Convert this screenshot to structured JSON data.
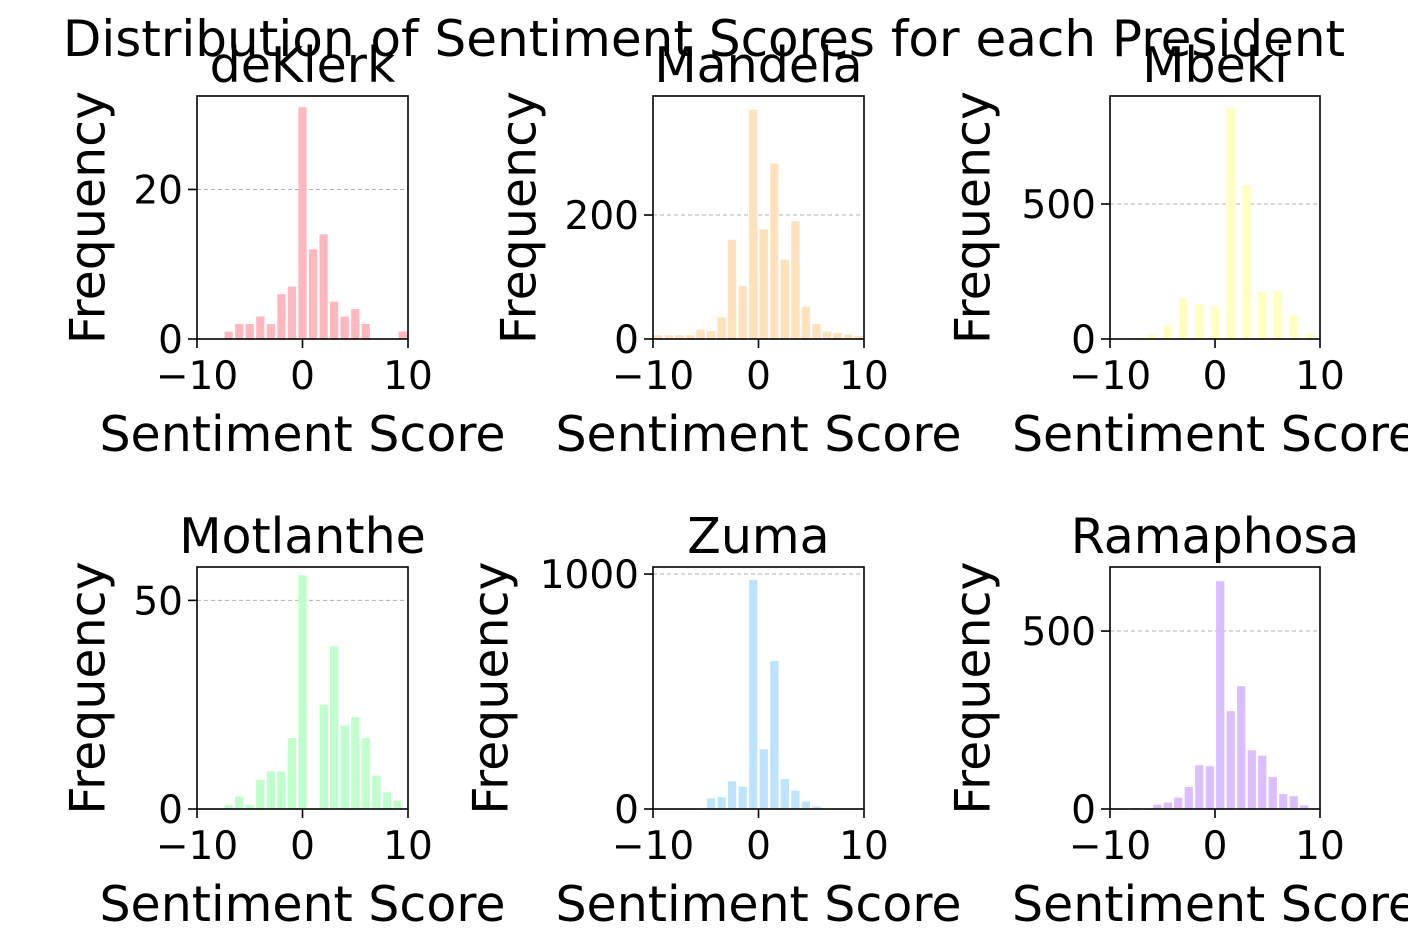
{
  "figure_title": "Distribution of Sentiment Scores for each President",
  "chart_data": [
    {
      "type": "bar",
      "title": "deKlerk",
      "xlabel": "Sentiment Score",
      "ylabel": "Frequency",
      "color": "#ffb3ba",
      "xlim": [
        -10,
        10
      ],
      "ylim": [
        0,
        32.5
      ],
      "xticks": [
        -10,
        0,
        10
      ],
      "yticks": [
        0,
        20
      ],
      "grid_y": [
        20
      ],
      "x": [
        -7,
        -6,
        -5,
        -4,
        -3,
        -2,
        -1,
        0,
        1,
        2,
        3,
        4,
        5,
        6,
        9.5
      ],
      "values": [
        1,
        2,
        2,
        3,
        2,
        6,
        7,
        31,
        12,
        14,
        5,
        3,
        4,
        2,
        1
      ]
    },
    {
      "type": "bar",
      "title": "Mandela",
      "xlabel": "Sentiment Score",
      "ylabel": "Frequency",
      "color": "#ffdfba",
      "xlim": [
        -10,
        10
      ],
      "ylim": [
        0,
        392
      ],
      "xticks": [
        -10,
        0,
        10
      ],
      "yticks": [
        0,
        200
      ],
      "grid_y": [
        200
      ],
      "x": [
        -9.5,
        -8.5,
        -7.5,
        -6.5,
        -5.5,
        -4.5,
        -3.5,
        -2.5,
        -1.5,
        -0.5,
        0.5,
        1.5,
        2.5,
        3.5,
        4.5,
        5.5,
        6.5,
        7.5,
        8.5,
        9.5
      ],
      "values": [
        6,
        6,
        6,
        6,
        15,
        13,
        35,
        160,
        85,
        370,
        177,
        283,
        128,
        190,
        52,
        24,
        12,
        10,
        7,
        5
      ]
    },
    {
      "type": "bar",
      "title": "Mbeki",
      "xlabel": "Sentiment Score",
      "ylabel": "Frequency",
      "color": "#ffffba",
      "xlim": [
        -10,
        10
      ],
      "ylim": [
        0,
        900
      ],
      "xticks": [
        -10,
        0,
        10
      ],
      "yticks": [
        0,
        500
      ],
      "grid_y": [
        500
      ],
      "x": [
        -9,
        -7.5,
        -6,
        -4.5,
        -3,
        -1.5,
        0,
        1.5,
        3,
        4.5,
        6,
        7.5,
        9
      ],
      "values": [
        0,
        5,
        15,
        50,
        150,
        130,
        120,
        855,
        570,
        175,
        178,
        90,
        20
      ]
    },
    {
      "type": "bar",
      "title": "Motlanthe",
      "xlabel": "Sentiment Score",
      "ylabel": "Frequency",
      "color": "#baffc9",
      "xlim": [
        -10,
        10
      ],
      "ylim": [
        0,
        58
      ],
      "xticks": [
        -10,
        0,
        10
      ],
      "yticks": [
        0,
        50
      ],
      "grid_y": [
        50
      ],
      "x": [
        -7,
        -6,
        -5,
        -4,
        -3,
        -2,
        -1,
        0,
        1,
        2,
        3,
        4,
        5,
        6,
        7,
        8,
        9
      ],
      "values": [
        1,
        3,
        1,
        7,
        9,
        9,
        17,
        56,
        0,
        25,
        39,
        20,
        22,
        17,
        8,
        4,
        2
      ]
    },
    {
      "type": "bar",
      "title": "Zuma",
      "xlabel": "Sentiment Score",
      "ylabel": "Frequency",
      "color": "#bae1ff",
      "xlim": [
        -10,
        10
      ],
      "ylim": [
        0,
        1030
      ],
      "xticks": [
        -10,
        0,
        10
      ],
      "yticks": [
        0,
        1000
      ],
      "grid_y": [
        1000
      ],
      "x": [
        -9.5,
        -8.5,
        -7.5,
        -6.5,
        -5.5,
        -4.5,
        -3.5,
        -2.5,
        -1.5,
        -0.5,
        0.5,
        1.5,
        2.5,
        3.5,
        4.5,
        5.5,
        6.5,
        7.5,
        8.5,
        9.5
      ],
      "values": [
        0,
        0,
        0,
        0,
        1,
        45,
        50,
        118,
        95,
        975,
        255,
        630,
        128,
        78,
        32,
        10,
        3,
        2,
        1,
        0
      ]
    },
    {
      "type": "bar",
      "title": "Ramaphosa",
      "xlabel": "Sentiment Score",
      "ylabel": "Frequency",
      "color": "#d9baff",
      "xlim": [
        -10,
        10
      ],
      "ylim": [
        0,
        680
      ],
      "xticks": [
        -10,
        0,
        10
      ],
      "yticks": [
        0,
        500
      ],
      "grid_y": [
        500
      ],
      "x": [
        -9.5,
        -8.5,
        -7.5,
        -6.5,
        -5.5,
        -4.5,
        -3.5,
        -2.5,
        -1.5,
        -0.5,
        0.5,
        1.5,
        2.5,
        3.5,
        4.5,
        5.5,
        6.5,
        7.5,
        8.5,
        9.5
      ],
      "values": [
        0,
        0,
        3,
        0,
        12,
        18,
        32,
        62,
        123,
        120,
        640,
        275,
        345,
        165,
        150,
        90,
        42,
        36,
        10,
        0
      ]
    }
  ]
}
